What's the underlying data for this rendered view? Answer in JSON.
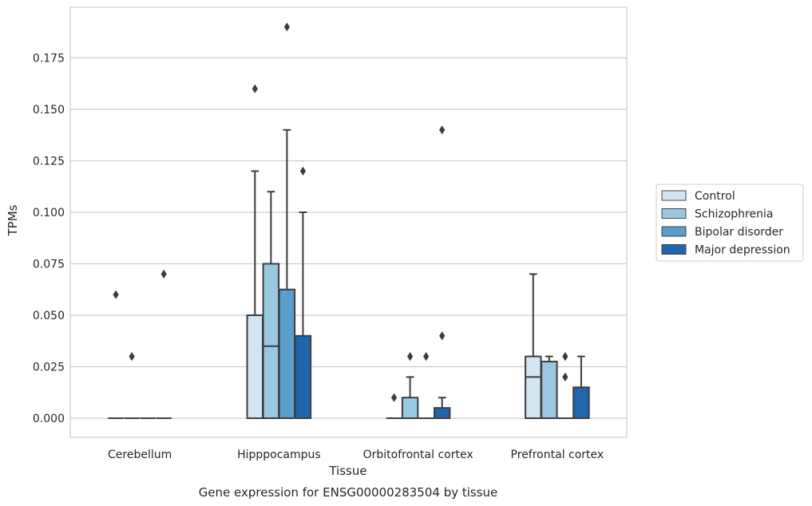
{
  "chart_data": {
    "type": "box",
    "caption": "Gene expression for ENSG00000283504 by tissue",
    "xlabel": "Tissue",
    "ylabel": "TPMs",
    "ylim": [
      -0.0093,
      0.1985
    ],
    "yticks": [
      "0.000",
      "0.025",
      "0.050",
      "0.075",
      "0.100",
      "0.125",
      "0.150",
      "0.175"
    ],
    "grid": "horizontal",
    "legend_position": "right",
    "categories": [
      "Cerebellum",
      "Hipppocampus",
      "Orbitofrontal cortex",
      "Prefrontal cortex"
    ],
    "series": [
      {
        "name": "Control",
        "color": "#d3e4f3",
        "boxes": [
          {
            "q1": 0,
            "median": 0,
            "q3": 0,
            "whisker_low": 0,
            "whisker_high": 0,
            "outliers": [
              0.06
            ]
          },
          {
            "q1": 0,
            "median": 0.05,
            "q3": 0.05,
            "whisker_low": 0,
            "whisker_high": 0.12,
            "outliers": [
              0.16
            ]
          },
          {
            "q1": 0,
            "median": 0,
            "q3": 0,
            "whisker_low": 0,
            "whisker_high": 0,
            "outliers": [
              0.01
            ]
          },
          {
            "q1": 0,
            "median": 0.02,
            "q3": 0.03,
            "whisker_low": 0,
            "whisker_high": 0.07,
            "outliers": []
          }
        ]
      },
      {
        "name": "Schizophrenia",
        "color": "#9ac8e0",
        "boxes": [
          {
            "q1": 0,
            "median": 0,
            "q3": 0,
            "whisker_low": 0,
            "whisker_high": 0,
            "outliers": [
              0.03
            ]
          },
          {
            "q1": 0,
            "median": 0.035,
            "q3": 0.075,
            "whisker_low": 0,
            "whisker_high": 0.11,
            "outliers": []
          },
          {
            "q1": 0,
            "median": 0,
            "q3": 0.01,
            "whisker_low": 0,
            "whisker_high": 0.02,
            "outliers": [
              0.03
            ]
          },
          {
            "q1": 0,
            "median": 0,
            "q3": 0.0275,
            "whisker_low": 0,
            "whisker_high": 0.03,
            "outliers": []
          }
        ]
      },
      {
        "name": "Bipolar disorder",
        "color": "#5a9ecc",
        "boxes": [
          {
            "q1": 0,
            "median": 0,
            "q3": 0,
            "whisker_low": 0,
            "whisker_high": 0,
            "outliers": []
          },
          {
            "q1": 0,
            "median": 0,
            "q3": 0.0625,
            "whisker_low": 0,
            "whisker_high": 0.14,
            "outliers": [
              0.19
            ]
          },
          {
            "q1": 0,
            "median": 0,
            "q3": 0,
            "whisker_low": 0,
            "whisker_high": 0,
            "outliers": [
              0.03
            ]
          },
          {
            "q1": 0,
            "median": 0,
            "q3": 0,
            "whisker_low": 0,
            "whisker_high": 0,
            "outliers": [
              0.02,
              0.03
            ]
          }
        ]
      },
      {
        "name": "Major depression",
        "color": "#2166ac",
        "boxes": [
          {
            "q1": 0,
            "median": 0,
            "q3": 0,
            "whisker_low": 0,
            "whisker_high": 0,
            "outliers": [
              0.07
            ]
          },
          {
            "q1": 0,
            "median": 0,
            "q3": 0.04,
            "whisker_low": 0,
            "whisker_high": 0.1,
            "outliers": [
              0.12
            ]
          },
          {
            "q1": 0,
            "median": 0,
            "q3": 0.005,
            "whisker_low": 0,
            "whisker_high": 0.01,
            "outliers": [
              0.04,
              0.14
            ]
          },
          {
            "q1": 0,
            "median": 0,
            "q3": 0.015,
            "whisker_low": 0,
            "whisker_high": 0.03,
            "outliers": []
          }
        ]
      }
    ]
  }
}
